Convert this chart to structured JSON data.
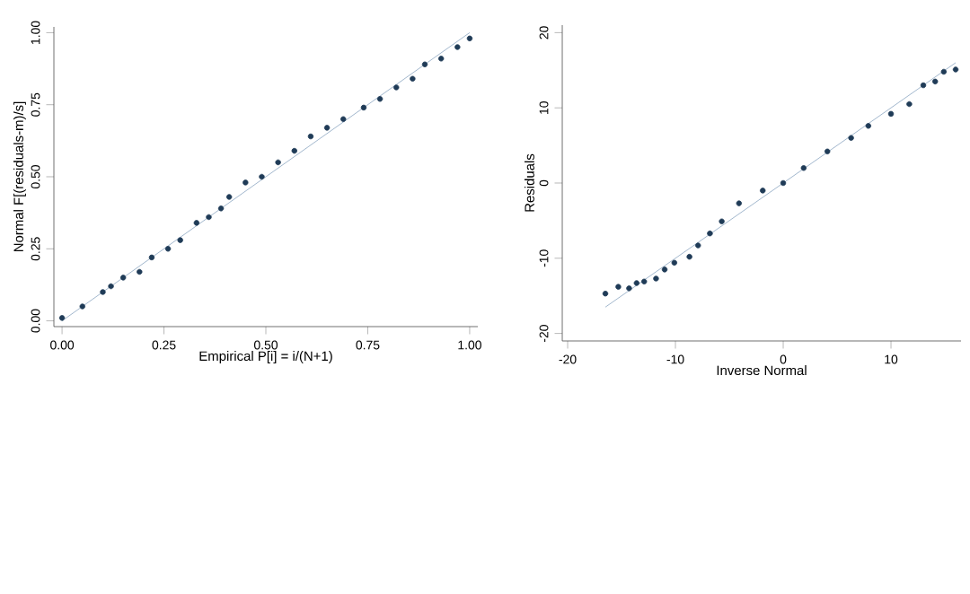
{
  "chart_data": [
    {
      "type": "scatter",
      "xlabel": "Empirical P[i] = i/(N+1)",
      "ylabel": "Normal F[(residuals-m)/s]",
      "xlim": [
        -0.02,
        1.02
      ],
      "ylim": [
        -0.02,
        1.02
      ],
      "xticks": [
        {
          "value": 0,
          "label": "0.00"
        },
        {
          "value": 0.25,
          "label": "0.25"
        },
        {
          "value": 0.5,
          "label": "0.50"
        },
        {
          "value": 0.75,
          "label": "0.75"
        },
        {
          "value": 1,
          "label": "1.00"
        }
      ],
      "yticks": [
        {
          "value": 0,
          "label": "0.00"
        },
        {
          "value": 0.25,
          "label": "0.25"
        },
        {
          "value": 0.5,
          "label": "0.50"
        },
        {
          "value": 0.75,
          "label": "0.75"
        },
        {
          "value": 1,
          "label": "1.00"
        }
      ],
      "series": [
        {
          "marker": "circle",
          "color": "#1f3b57",
          "x": [
            0.0,
            0.05,
            0.1,
            0.12,
            0.15,
            0.19,
            0.22,
            0.26,
            0.29,
            0.33,
            0.36,
            0.39,
            0.41,
            0.45,
            0.49,
            0.53,
            0.57,
            0.61,
            0.65,
            0.69,
            0.74,
            0.78,
            0.82,
            0.86,
            0.89,
            0.93,
            0.97,
            1.0
          ],
          "values": [
            0.01,
            0.05,
            0.1,
            0.12,
            0.15,
            0.17,
            0.22,
            0.25,
            0.28,
            0.34,
            0.36,
            0.39,
            0.43,
            0.48,
            0.5,
            0.55,
            0.59,
            0.64,
            0.67,
            0.7,
            0.74,
            0.77,
            0.81,
            0.84,
            0.89,
            0.91,
            0.95,
            0.98
          ]
        },
        {
          "type": "line",
          "marker": "none",
          "color": "#8aa4c0",
          "x": [
            0,
            1
          ],
          "values": [
            0,
            1
          ]
        }
      ]
    },
    {
      "type": "scatter",
      "xlabel": "Inverse Normal",
      "ylabel": "Residuals",
      "xlim": [
        -20.5,
        16.5
      ],
      "ylim": [
        -21,
        21
      ],
      "xticks": [
        -20,
        -10,
        0,
        10
      ],
      "yticks": [
        -20,
        -10,
        0,
        10,
        20
      ],
      "series": [
        {
          "marker": "circle",
          "color": "#1f3b57",
          "x": [
            -16.5,
            -15.3,
            -14.3,
            -13.6,
            -12.9,
            -11.8,
            -11.0,
            -10.1,
            -8.7,
            -7.9,
            -6.8,
            -5.7,
            -4.1,
            -1.9,
            0.0,
            1.9,
            4.1,
            6.3,
            7.9,
            10.0,
            11.7,
            13.0,
            14.1,
            14.9,
            16.0
          ],
          "values": [
            -14.7,
            -13.8,
            -14.0,
            -13.3,
            -13.1,
            -12.7,
            -11.5,
            -10.6,
            -9.8,
            -8.3,
            -6.7,
            -5.1,
            -2.7,
            -1.0,
            0.0,
            2.0,
            4.2,
            6.0,
            7.6,
            9.2,
            10.5,
            13.0,
            13.5,
            14.8,
            15.1
          ]
        },
        {
          "type": "line",
          "marker": "none",
          "color": "#8aa4c0",
          "x": [
            -16.5,
            16.0
          ],
          "values": [
            -16.5,
            16.0
          ]
        }
      ]
    }
  ]
}
